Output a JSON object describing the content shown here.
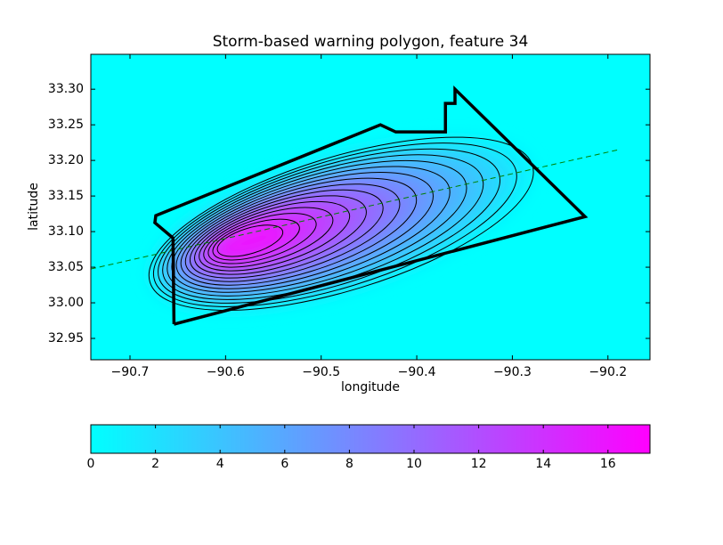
{
  "chart_data": {
    "type": "contour",
    "title": "Storm-based warning polygon, feature 34",
    "x_label": "longitude",
    "y_label": "latitude",
    "xlim": [
      -90.741,
      -90.156
    ],
    "ylim": [
      32.92,
      33.349
    ],
    "xticks": [
      {
        "value": -90.7,
        "label": "−90.7"
      },
      {
        "value": -90.6,
        "label": "−90.6"
      },
      {
        "value": -90.5,
        "label": "−90.5"
      },
      {
        "value": -90.4,
        "label": "−90.4"
      },
      {
        "value": -90.3,
        "label": "−90.3"
      },
      {
        "value": -90.2,
        "label": "−90.2"
      }
    ],
    "yticks": [
      32.95,
      {
        "value": 33.0,
        "label": "33.00"
      },
      33.05,
      {
        "value": 33.1,
        "label": "33.10"
      },
      33.15,
      {
        "value": 33.2,
        "label": "33.20"
      },
      33.25,
      {
        "value": 33.3,
        "label": "33.30"
      }
    ],
    "levels": [
      1,
      2,
      3,
      4,
      5,
      6,
      7,
      8,
      9,
      10,
      11,
      12,
      13,
      14,
      15,
      16
    ],
    "colormap": [
      "#00ffff",
      "#ff00ff"
    ],
    "polygon": {
      "color": "#000000",
      "lon": [
        -90.654,
        -90.655,
        -90.674,
        -90.673,
        -90.438,
        -90.422,
        -90.37,
        -90.37,
        -90.36,
        -90.36,
        -90.224,
        -90.654
      ],
      "lat": [
        32.97,
        33.091,
        33.1125,
        33.1225,
        33.25,
        33.24,
        33.24,
        33.28,
        33.28,
        33.3,
        33.121,
        32.97
      ]
    },
    "motion_line": {
      "color": "#008000",
      "lon": [
        -90.741,
        -90.189
      ],
      "lat": [
        33.0475,
        33.215
      ]
    },
    "colorbar": {
      "clim": [
        0,
        17.3
      ],
      "ticks": [
        0,
        2,
        4,
        6,
        8,
        10,
        12,
        14,
        16
      ]
    }
  }
}
